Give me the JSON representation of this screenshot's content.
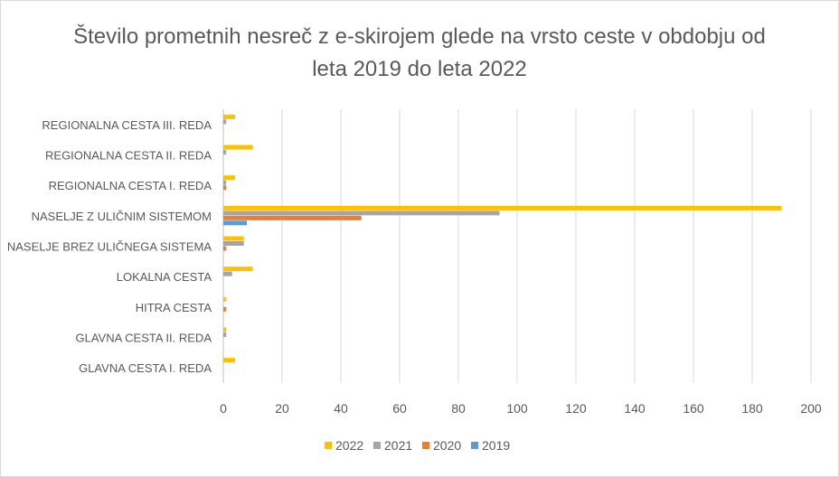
{
  "chart_data": {
    "type": "bar",
    "orientation": "horizontal",
    "title_line1": "Število prometnih nesreč z e-skirojem glede na vrsto ceste v obdobju od",
    "title_line2": "leta 2019 do leta 2022",
    "categories": [
      "GLAVNA CESTA I. REDA",
      "GLAVNA CESTA II. REDA",
      "HITRA CESTA",
      "LOKALNA CESTA",
      "NASELJE BREZ ULIČNEGA SISTEMA",
      "NASELJE Z ULIČNIM SISTEMOM",
      "REGIONALNA CESTA I. REDA",
      "REGIONALNA CESTA II. REDA",
      "REGIONALNA CESTA III. REDA"
    ],
    "series": [
      {
        "name": "2022",
        "color": "#FFC000",
        "values": [
          4,
          1,
          1,
          10,
          7,
          190,
          4,
          10,
          4
        ]
      },
      {
        "name": "2021",
        "color": "#A5A5A5",
        "values": [
          0,
          1,
          0,
          3,
          7,
          94,
          1,
          1,
          1
        ]
      },
      {
        "name": "2020",
        "color": "#ED7D31",
        "values": [
          0,
          0,
          1,
          0,
          1,
          47,
          1,
          0,
          0
        ]
      },
      {
        "name": "2019",
        "color": "#5B9BD5",
        "values": [
          0,
          0,
          0,
          0,
          0,
          8,
          0,
          0,
          0
        ]
      }
    ],
    "xlim": [
      0,
      200
    ],
    "xticks": [
      "0",
      "20",
      "40",
      "60",
      "80",
      "100",
      "120",
      "140",
      "160",
      "180",
      "200"
    ],
    "grid": true,
    "legend_position": "bottom"
  }
}
